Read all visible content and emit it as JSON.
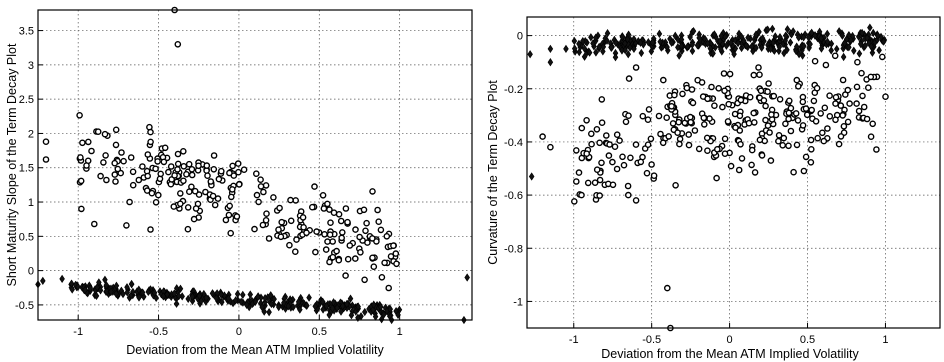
{
  "chart_data": [
    {
      "type": "scatter",
      "xlabel": "Deviation from the Mean ATM Implied Volatility",
      "ylabel": "Short Maturity Slope of the Term Decay Plot",
      "xlim": [
        -1.25,
        1.45
      ],
      "ylim": [
        -0.72,
        3.8
      ],
      "grid": true,
      "x_ticks": [
        -1,
        -0.5,
        0,
        0.5,
        1
      ],
      "x_tick_labels": [
        "-1",
        "-0.5",
        "0",
        "0.5",
        "1"
      ],
      "y_ticks": [
        -0.5,
        0,
        0.5,
        1,
        1.5,
        2,
        2.5,
        3,
        3.5
      ],
      "y_tick_labels": [
        "-0.5",
        "0",
        "0.5",
        "1",
        "1.5",
        "2",
        "2.5",
        "3",
        "3.5"
      ],
      "series": [
        {
          "marker": "circle",
          "clusters": [
            {
              "n": 230,
              "x": [
                -1.0,
                0.98
              ],
              "line": [
                [
                  -1.0,
                  1.72
                ],
                [
                  0.98,
                  0.3
                ]
              ],
              "spread": 0.26
            },
            {
              "n": 40,
              "x": [
                -0.55,
                0.2
              ],
              "line": [
                [
                  -0.55,
                  1.55
                ],
                [
                  0.2,
                  1.25
                ]
              ],
              "spread": 0.12
            }
          ],
          "points": [
            [
              -1.2,
              1.88
            ],
            [
              -1.2,
              1.62
            ],
            [
              -0.38,
              3.3
            ],
            [
              -0.4,
              3.8
            ],
            [
              -0.98,
              0.9
            ],
            [
              -0.9,
              0.68
            ],
            [
              -0.7,
              0.66
            ],
            [
              -0.68,
              1.0
            ],
            [
              -0.55,
              2.02
            ],
            [
              -0.55,
              0.6
            ],
            [
              0.98,
              0.1
            ],
            [
              0.92,
              0.5
            ],
            [
              0.83,
              0.47
            ]
          ]
        },
        {
          "marker": "diamond",
          "clusters": [
            {
              "n": 300,
              "x": [
                -1.05,
                1.0
              ],
              "line": [
                [
                  -1.05,
                  -0.25
                ],
                [
                  1.0,
                  -0.6
                ]
              ],
              "spread": 0.05
            }
          ],
          "points": [
            [
              -1.22,
              -0.15
            ],
            [
              -1.25,
              -0.2
            ],
            [
              -1.1,
              -0.12
            ],
            [
              0.85,
              -0.67
            ],
            [
              0.88,
              -0.78
            ],
            [
              0.95,
              -0.72
            ],
            [
              0.7,
              -0.65
            ],
            [
              1.4,
              -0.72
            ],
            [
              1.42,
              -0.1
            ]
          ]
        }
      ]
    },
    {
      "type": "scatter",
      "xlabel": "Deviation from the Mean ATM Implied Volatility",
      "ylabel": "Curvature of the Term Decay Plot",
      "xlim": [
        -1.3,
        1.35
      ],
      "ylim": [
        -1.1,
        0.07
      ],
      "grid": true,
      "x_ticks": [
        -1,
        -0.5,
        0,
        0.5,
        1
      ],
      "x_tick_labels": [
        "-1",
        "-0.5",
        "0",
        "0.5",
        "1"
      ],
      "y_ticks": [
        -1,
        -0.8,
        -0.6,
        -0.4,
        -0.2,
        0
      ],
      "y_tick_labels": [
        "-1",
        "-0.8",
        "-0.6",
        "-0.4",
        "-0.2",
        "0"
      ],
      "series": [
        {
          "marker": "circle",
          "clusters": [
            {
              "n": 250,
              "x": [
                -1.0,
                0.95
              ],
              "line": [
                [
                  -1.0,
                  -0.47
                ],
                [
                  0.95,
                  -0.25
                ]
              ],
              "spread": 0.085
            },
            {
              "n": 60,
              "x": [
                -0.45,
                0.3
              ],
              "line": [
                [
                  -0.45,
                  -0.22
                ],
                [
                  0.3,
                  -0.28
                ]
              ],
              "spread": 0.07
            }
          ],
          "points": [
            [
              -1.2,
              -0.38
            ],
            [
              -1.15,
              -0.42
            ],
            [
              -0.95,
              -0.6
            ],
            [
              -0.82,
              -0.24
            ],
            [
              -0.65,
              -0.6
            ],
            [
              -0.6,
              -0.62
            ],
            [
              -0.6,
              -0.12
            ],
            [
              -0.4,
              -0.95
            ],
            [
              -0.38,
              -1.1
            ],
            [
              0.82,
              -0.1
            ],
            [
              0.98,
              -0.08
            ],
            [
              1.0,
              -0.23
            ],
            [
              0.25,
              -0.18
            ]
          ]
        },
        {
          "marker": "diamond",
          "clusters": [
            {
              "n": 320,
              "x": [
                -1.0,
                1.0
              ],
              "line": [
                [
                  -1.0,
                  -0.04
                ],
                [
                  1.0,
                  -0.02
                ]
              ],
              "spread": 0.022
            }
          ],
          "points": [
            [
              -1.28,
              -0.07
            ],
            [
              -1.27,
              -0.53
            ],
            [
              -1.15,
              -0.05
            ],
            [
              -1.15,
              -0.1
            ],
            [
              -1.05,
              -0.05
            ],
            [
              0.85,
              0.01
            ],
            [
              0.9,
              0.03
            ],
            [
              0.95,
              0.0
            ]
          ]
        }
      ]
    }
  ]
}
